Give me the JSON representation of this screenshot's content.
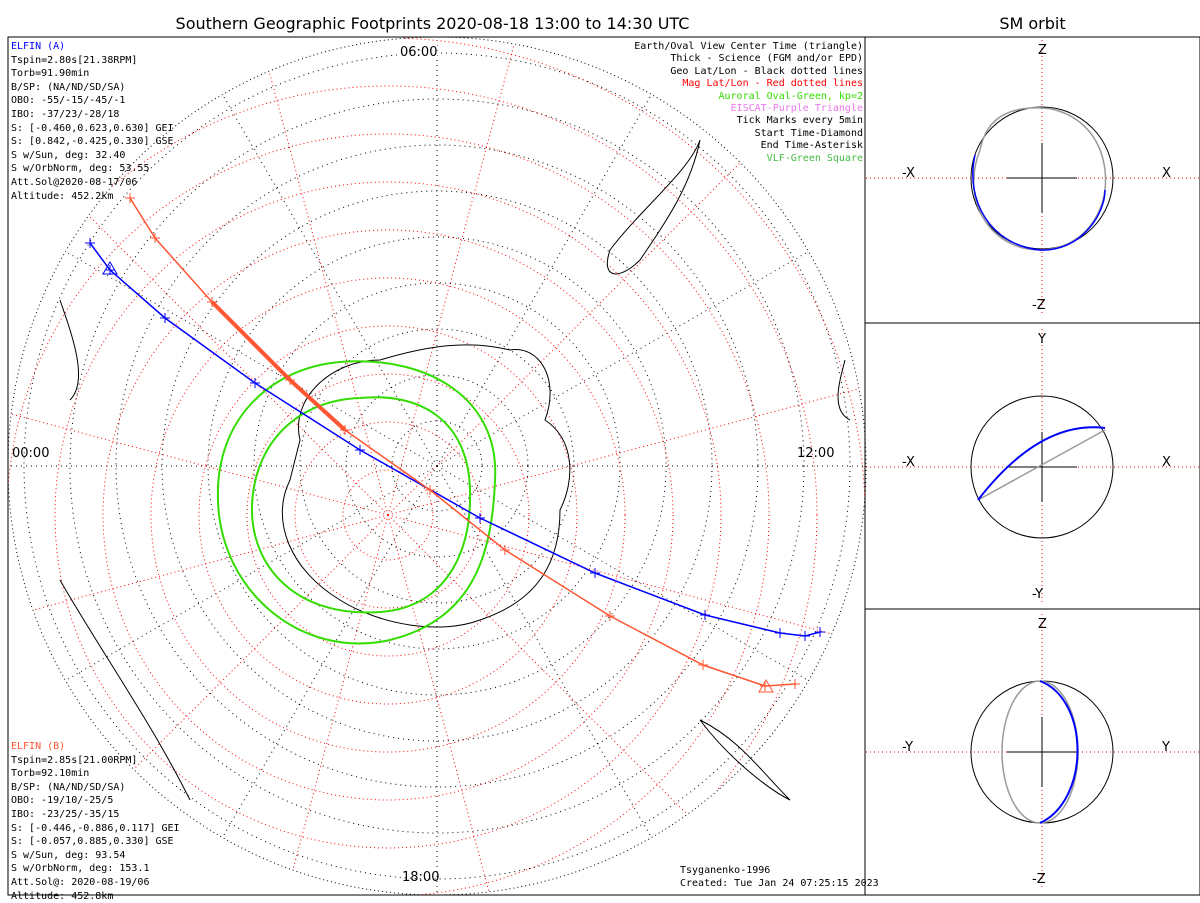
{
  "title": "Southern Geographic Footprints 2020-08-18 13:00 to 14:30 UTC",
  "sm_title": "SM orbit",
  "elfin_a": {
    "name": "ELFIN (A)",
    "color": "#0000ff",
    "lines": [
      "Tspin=2.80s[21.38RPM]",
      "Torb=91.90min",
      "B/SP: (NA/ND/SD/SA)",
      "OBO: -55/-15/-45/-1",
      "IBO: -37/23/-28/18",
      "S: [-0.460,0.623,0.630] GEI",
      "S: [0.842,-0.425,0.330] GSE",
      "S w/Sun, deg: 32.40",
      "S w/OrbNorm, deg: 53.55",
      "Att.Sol@2020-08-17/06",
      "Altitude: 452.2km"
    ]
  },
  "elfin_b": {
    "name": "ELFIN (B)",
    "color": "#ff5533",
    "lines": [
      "Tspin=2.85s[21.00RPM]",
      "Torb=92.10min",
      "B/SP: (NA/ND/SD/SA)",
      "OBO: -19/10/-25/5",
      "IBO: -23/25/-35/15",
      "S: [-0.446,-0.886,0.117] GEI",
      "S: [-0.057,0.885,0.330] GSE",
      "S w/Sun, deg: 93.54",
      "S w/OrbNorm, deg: 153.1",
      "Att.Sol@: 2020-08-19/06",
      "Altitude: 452.8km"
    ]
  },
  "legend": [
    {
      "text": "Earth/Oval View Center Time (triangle)",
      "color": "#000000"
    },
    {
      "text": "Thick - Science (FGM and/or EPD)",
      "color": "#000000"
    },
    {
      "text": "Geo Lat/Lon - Black dotted lines",
      "color": "#000000"
    },
    {
      "text": "Mag Lat/Lon - Red dotted lines",
      "color": "#ff0000"
    },
    {
      "text": "Auroral Oval-Green, kp=2",
      "color": "#33dd00"
    },
    {
      "text": "EISCAT-Purple Triangle",
      "color": "#ee77ee"
    },
    {
      "text": "Tick Marks every 5min",
      "color": "#000000"
    },
    {
      "text": "Start Time-Diamond",
      "color": "#000000"
    },
    {
      "text": "End Time-Asterisk",
      "color": "#000000"
    },
    {
      "text": "VLF-Green Square",
      "color": "#44bb44"
    }
  ],
  "local_times": {
    "top": "06:00",
    "left": "00:00",
    "right": "12:00",
    "bottom": "18:00"
  },
  "footer": {
    "model": "Tsyganenko-1996",
    "created": "Created: Tue Jan 24 07:25:15 2023"
  },
  "sm_panels": [
    {
      "top": "Z",
      "bottom": "-Z",
      "left": "-X",
      "right": "X"
    },
    {
      "top": "Y",
      "bottom": "-Y",
      "left": "-X",
      "right": "X"
    },
    {
      "top": "Z",
      "bottom": "-Z",
      "left": "-Y",
      "right": "Y"
    }
  ]
}
